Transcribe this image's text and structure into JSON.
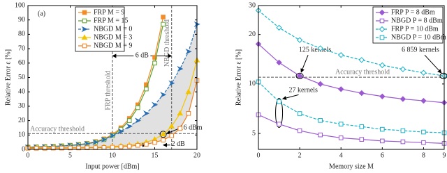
{
  "chart_data": [
    {
      "type": "line",
      "xlabel": "Input power [dBm]",
      "ylabel": "Relative Error ε [%]",
      "xlim": [
        0,
        20
      ],
      "ylim": [
        0,
        100
      ],
      "xticks": [
        0,
        5,
        10,
        15,
        20
      ],
      "yticks": [
        0,
        10,
        20,
        30,
        40,
        50,
        60,
        70,
        80,
        90,
        100
      ],
      "legend": "top center",
      "series": [
        {
          "name": "FRP M = 9",
          "color": "#f28c28",
          "marker": "square",
          "filled": true,
          "dashed": false,
          "x": [
            0,
            1,
            2,
            3,
            4,
            5,
            6,
            7,
            8,
            9,
            10,
            11,
            12,
            13,
            14,
            15,
            16
          ],
          "values": [
            1.6,
            1.8,
            2,
            2.2,
            2.5,
            2.9,
            3.4,
            4.2,
            5.4,
            7.3,
            10.3,
            15,
            21.5,
            31,
            45,
            64,
            92
          ]
        },
        {
          "name": "FRP M = 15",
          "color": "#5aa02c",
          "marker": "square",
          "filled": false,
          "dashed": false,
          "x": [
            0,
            1,
            2,
            3,
            4,
            5,
            6,
            7,
            8,
            9,
            10,
            11,
            12,
            13,
            14,
            15,
            16
          ],
          "values": [
            1.4,
            1.6,
            1.8,
            2,
            2.3,
            2.7,
            3.2,
            3.9,
            5,
            6.8,
            9.6,
            14,
            20,
            29,
            42,
            60,
            87
          ]
        },
        {
          "name": "NBGD M = 0",
          "color": "#2a6fb4",
          "marker": "arrow",
          "filled": true,
          "dashed": true,
          "x": [
            0,
            1,
            2,
            3,
            4,
            5,
            6,
            7,
            8,
            9,
            10,
            11,
            12,
            13,
            14,
            15,
            16,
            17,
            18,
            19,
            20
          ],
          "values": [
            1.4,
            1.6,
            1.8,
            2,
            2.3,
            2.7,
            3.2,
            3.9,
            5,
            6.8,
            9.6,
            12.5,
            16,
            20,
            25,
            31,
            38,
            46,
            56,
            68,
            87
          ]
        },
        {
          "name": "NBGD M = 3",
          "color": "#f5c400",
          "marker": "triangle",
          "filled": true,
          "dashed": false,
          "x": [
            0,
            1,
            2,
            3,
            4,
            5,
            6,
            7,
            8,
            9,
            10,
            11,
            12,
            13,
            14,
            15,
            16,
            17,
            18,
            19,
            20
          ],
          "values": [
            1,
            1,
            1,
            1.1,
            1.1,
            1.2,
            1.3,
            1.4,
            1.5,
            1.7,
            2,
            2.4,
            3,
            3.8,
            5,
            7,
            10.5,
            16,
            25,
            40,
            62
          ]
        },
        {
          "name": "NBGD M = 9",
          "color": "#f08020",
          "marker": "square",
          "filled": false,
          "dashed": false,
          "x": [
            0,
            1,
            2,
            3,
            4,
            5,
            6,
            7,
            8,
            9,
            10,
            11,
            12,
            13,
            14,
            15,
            16,
            17,
            18,
            19,
            20
          ],
          "values": [
            0.8,
            0.8,
            0.8,
            0.9,
            0.9,
            1,
            1,
            1.1,
            1.2,
            1.3,
            1.5,
            1.8,
            2.2,
            2.8,
            3.6,
            4.8,
            6.5,
            9.5,
            14.5,
            25,
            48
          ]
        }
      ],
      "annotations": [
        {
          "text": "(a)"
        },
        {
          "text": "FRP threshold",
          "x": 10
        },
        {
          "text": "NBGD threshold",
          "x": 17
        },
        {
          "text": "Accuracy threshold",
          "y": 11
        },
        {
          "text": "6 dB",
          "y": 65
        },
        {
          "text": "16 dBm",
          "x": 16,
          "y": 10.5
        },
        {
          "text": "2 dB",
          "x": [
            14,
            16
          ],
          "y": 3
        }
      ]
    },
    {
      "type": "line",
      "xlabel": "Memory size M",
      "ylabel": "Relative Error ε [%]",
      "yscale": "log",
      "xlim": [
        0,
        9
      ],
      "ylim": [
        4,
        30
      ],
      "xticks": [
        0,
        2,
        4,
        6,
        8,
        9
      ],
      "yticks": [
        5,
        10,
        20,
        30
      ],
      "legend": "upper right",
      "series": [
        {
          "name": "FRP P = 8 dBm",
          "color": "#9b59d0",
          "marker": "diamond",
          "filled": true,
          "dashed": false,
          "x": [
            0,
            1,
            2,
            3,
            4,
            5,
            6,
            7,
            8,
            9
          ],
          "values": [
            17.5,
            13.5,
            11.2,
            10,
            9.3,
            8.8,
            8.4,
            8.1,
            7.9,
            7.7
          ]
        },
        {
          "name": "NBGD P = 8 dBm",
          "color": "#9b59d0",
          "marker": "square",
          "filled": false,
          "dashed": false,
          "x": [
            0,
            1,
            2,
            3,
            4,
            5,
            6,
            7,
            8,
            9
          ],
          "values": [
            6.5,
            5.7,
            5.2,
            4.9,
            4.7,
            4.6,
            4.5,
            4.45,
            4.4,
            4.35
          ]
        },
        {
          "name": "FRP P = 10 dBm",
          "color": "#17b3c8",
          "marker": "diamond",
          "filled": false,
          "dashed": true,
          "x": [
            0,
            1,
            2,
            3,
            4,
            5,
            6,
            7,
            8,
            9
          ],
          "values": [
            28,
            22,
            18.5,
            16.5,
            15,
            14,
            13,
            12.3,
            11.7,
            11.2
          ]
        },
        {
          "name": "NBGD P = 10 dBm",
          "color": "#17b3c8",
          "marker": "square",
          "filled": false,
          "dashed": true,
          "x": [
            0,
            1,
            2,
            3,
            4,
            5,
            6,
            7,
            8,
            9
          ],
          "values": [
            10.3,
            7.8,
            6.6,
            6,
            5.7,
            5.5,
            5.3,
            5.2,
            5.1,
            5.05
          ]
        }
      ],
      "annotations": [
        {
          "text": "Accuracy threshold",
          "y": 11
        },
        {
          "text": "125 kernels",
          "x": 2,
          "y": 11.2
        },
        {
          "text": "6 859 kernels",
          "x": 9,
          "y": 11.2
        },
        {
          "text": "27 kernels",
          "x": 1,
          "y": [
            5.7,
            7.8
          ]
        }
      ]
    }
  ]
}
